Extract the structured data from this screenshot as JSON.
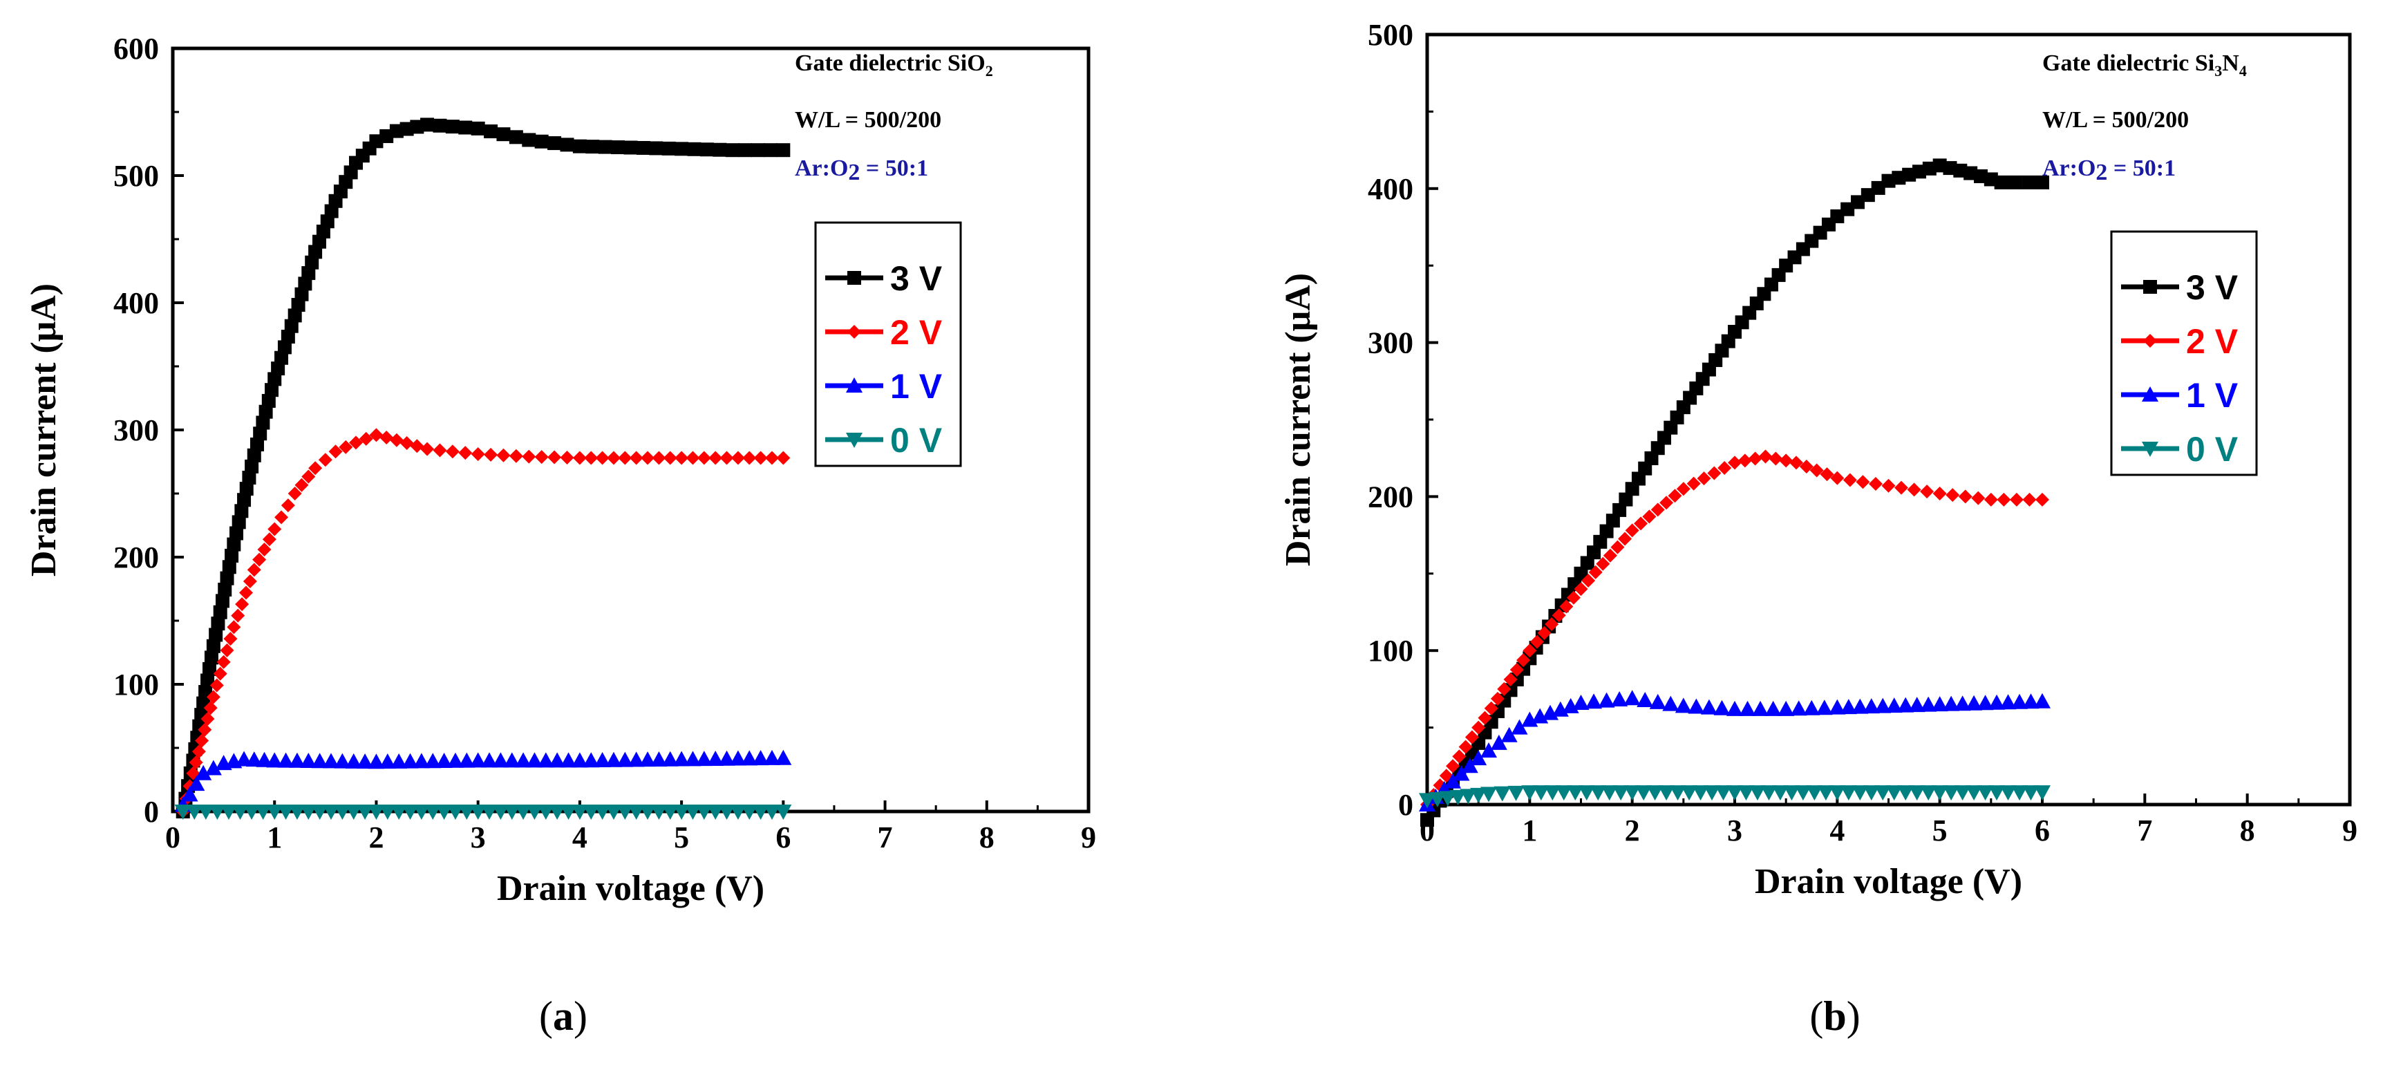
{
  "chart_data": [
    {
      "id": "a",
      "type": "scatter",
      "caption_letter": "a",
      "xlabel": "Drain voltage (V)",
      "ylabel": "Drain current (μA)",
      "xlim": [
        0,
        9
      ],
      "ylim": [
        0,
        600
      ],
      "xticks": [
        "0",
        "1",
        "2",
        "3",
        "4",
        "5",
        "6",
        "7",
        "8",
        "9"
      ],
      "yticks": [
        "0",
        "100",
        "200",
        "300",
        "400",
        "500",
        "600"
      ],
      "annotations": {
        "dielectric_prefix": "Gate dielectric SiO",
        "dielectric_sub": "2",
        "wl": "W/L = 500/200",
        "ar_prefix": "Ar:O",
        "ar_sub": "2",
        "ar_suffix": " = 50:1"
      },
      "legend_position": "right",
      "series": [
        {
          "name": "3 V",
          "color": "#000000",
          "marker": "square",
          "points": [
            [
              0.1,
              0
            ],
            [
              0.2,
              40
            ],
            [
              0.4,
              130
            ],
            [
              0.6,
              210
            ],
            [
              0.8,
              280
            ],
            [
              1.0,
              340
            ],
            [
              1.2,
              390
            ],
            [
              1.4,
              440
            ],
            [
              1.6,
              480
            ],
            [
              1.8,
              510
            ],
            [
              2.0,
              527
            ],
            [
              2.2,
              535
            ],
            [
              2.5,
              540
            ],
            [
              3.0,
              537
            ],
            [
              3.5,
              528
            ],
            [
              4.0,
              523
            ],
            [
              4.5,
              522
            ],
            [
              5.0,
              521
            ],
            [
              5.5,
              520
            ],
            [
              6.0,
              520
            ]
          ]
        },
        {
          "name": "2 V",
          "color": "#ff0000",
          "marker": "diamond",
          "points": [
            [
              0.1,
              0
            ],
            [
              0.2,
              30
            ],
            [
              0.4,
              90
            ],
            [
              0.6,
              145
            ],
            [
              0.8,
              190
            ],
            [
              1.0,
              222
            ],
            [
              1.2,
              250
            ],
            [
              1.4,
              270
            ],
            [
              1.6,
              283
            ],
            [
              1.8,
              290
            ],
            [
              2.0,
              296
            ],
            [
              2.2,
              292
            ],
            [
              2.5,
              285
            ],
            [
              3.0,
              281
            ],
            [
              3.5,
              279
            ],
            [
              4.0,
              278
            ],
            [
              5.0,
              278
            ],
            [
              6.0,
              278
            ]
          ]
        },
        {
          "name": "1 V",
          "color": "#0000ff",
          "marker": "triangle-up",
          "points": [
            [
              0.1,
              5
            ],
            [
              0.3,
              30
            ],
            [
              0.5,
              38
            ],
            [
              0.7,
              41
            ],
            [
              1.0,
              40
            ],
            [
              2.0,
              39
            ],
            [
              3.0,
              40
            ],
            [
              4.0,
              40
            ],
            [
              5.0,
              41
            ],
            [
              6.0,
              42
            ]
          ]
        },
        {
          "name": "0 V",
          "color": "#008080",
          "marker": "triangle-down",
          "points": [
            [
              0.1,
              0
            ],
            [
              1.0,
              0
            ],
            [
              2.0,
              0
            ],
            [
              3.0,
              0
            ],
            [
              4.0,
              0
            ],
            [
              5.0,
              0
            ],
            [
              6.0,
              0
            ]
          ]
        }
      ]
    },
    {
      "id": "b",
      "type": "scatter",
      "caption_letter": "b",
      "xlabel": "Drain voltage (V)",
      "ylabel": "Drain current (μA)",
      "xlim": [
        0,
        9
      ],
      "ylim": [
        0,
        500
      ],
      "xticks": [
        "0",
        "1",
        "2",
        "3",
        "4",
        "5",
        "6",
        "7",
        "8",
        "9"
      ],
      "yticks": [
        "0",
        "100",
        "200",
        "300",
        "400",
        "500"
      ],
      "annotations": {
        "dielectric_prefix": "Gate dielectric Si",
        "dielectric_sub1": "3",
        "dielectric_mid": "N",
        "dielectric_sub2": "4",
        "wl": "W/L = 500/200",
        "ar_prefix": "Ar:O",
        "ar_sub": "2",
        "ar_suffix": " = 50:1"
      },
      "legend_position": "right",
      "series": [
        {
          "name": "3 V",
          "color": "#000000",
          "marker": "square",
          "points": [
            [
              0,
              -10
            ],
            [
              0.5,
              40
            ],
            [
              1.0,
              95
            ],
            [
              1.5,
              150
            ],
            [
              2.0,
              205
            ],
            [
              2.5,
              258
            ],
            [
              3.0,
              307
            ],
            [
              3.5,
              350
            ],
            [
              4.0,
              382
            ],
            [
              4.5,
              405
            ],
            [
              5.0,
              415
            ],
            [
              5.3,
              410
            ],
            [
              5.6,
              404
            ],
            [
              6.0,
              404
            ]
          ]
        },
        {
          "name": "2 V",
          "color": "#ff0000",
          "marker": "diamond",
          "points": [
            [
              0,
              0
            ],
            [
              0.5,
              50
            ],
            [
              1.0,
              100
            ],
            [
              1.5,
              140
            ],
            [
              2.0,
              178
            ],
            [
              2.5,
              205
            ],
            [
              3.0,
              222
            ],
            [
              3.3,
              226
            ],
            [
              3.6,
              222
            ],
            [
              4.0,
              212
            ],
            [
              4.5,
              207
            ],
            [
              5.0,
              202
            ],
            [
              5.5,
              198
            ],
            [
              6.0,
              198
            ]
          ]
        },
        {
          "name": "1 V",
          "color": "#0000ff",
          "marker": "triangle-up",
          "points": [
            [
              0,
              0
            ],
            [
              0.5,
              30
            ],
            [
              1.0,
              55
            ],
            [
              1.5,
              66
            ],
            [
              2.0,
              69
            ],
            [
              2.5,
              64
            ],
            [
              3.0,
              62
            ],
            [
              3.5,
              62
            ],
            [
              4.0,
              63
            ],
            [
              5.0,
              65
            ],
            [
              6.0,
              67
            ]
          ]
        },
        {
          "name": "0 V",
          "color": "#008080",
          "marker": "triangle-down",
          "points": [
            [
              0,
              3
            ],
            [
              0.3,
              5
            ],
            [
              0.6,
              7
            ],
            [
              1.0,
              8
            ],
            [
              2.0,
              8
            ],
            [
              3.0,
              8
            ],
            [
              4.0,
              8
            ],
            [
              5.0,
              8
            ],
            [
              6.0,
              8
            ]
          ]
        }
      ]
    }
  ]
}
